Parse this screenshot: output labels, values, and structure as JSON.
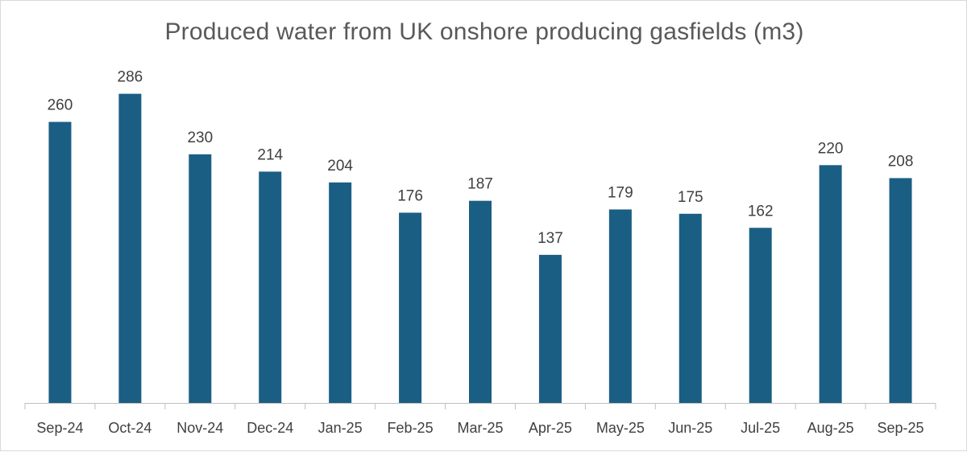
{
  "chart_data": {
    "type": "bar",
    "title": "Produced water from UK onshore producing gasfields (m3)",
    "categories": [
      "Sep-24",
      "Oct-24",
      "Nov-24",
      "Dec-24",
      "Jan-25",
      "Feb-25",
      "Mar-25",
      "Apr-25",
      "May-25",
      "Jun-25",
      "Jul-25",
      "Aug-25",
      "Sep-25"
    ],
    "values": [
      260,
      286,
      230,
      214,
      204,
      176,
      187,
      137,
      179,
      175,
      162,
      220,
      208
    ],
    "data_labels": [
      "260",
      "286",
      "230",
      "214",
      "204",
      "176",
      "187",
      "137",
      "179",
      "175",
      "162",
      "220",
      "208"
    ],
    "ylim": [
      0,
      300
    ],
    "grid": false,
    "legend": "none",
    "colors": {
      "bar": "#1b5e84"
    }
  }
}
